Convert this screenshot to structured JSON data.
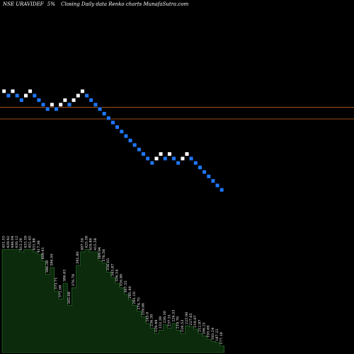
{
  "header": {
    "symbol": "NSE URAVIDEF",
    "change": "5%",
    "description": "Closing Daily data Renko charts MunafaSutra.com"
  },
  "colors": {
    "background": "#000000",
    "up_brick": "#ffffff",
    "down_brick": "#1e78ff",
    "level_line": "#c8641e",
    "volume_fill": "#0c2a0c",
    "volume_edge": "#2e7d32"
  },
  "chart_data": {
    "type": "renko",
    "brick_size_pct": 5,
    "price_axis": {
      "min": 155,
      "max": 420
    },
    "levels": [
      385,
      367
    ],
    "bricks": [
      {
        "dir": "up",
        "price": 410,
        "label": "451.55"
      },
      {
        "dir": "down",
        "price": 403,
        "label": "429.42"
      },
      {
        "dir": "up",
        "price": 410,
        "label": "448.04"
      },
      {
        "dir": "down",
        "price": 403,
        "label": "430.12"
      },
      {
        "dir": "down",
        "price": 396,
        "label": "413.29"
      },
      {
        "dir": "up",
        "price": 403,
        "label": "433.39"
      },
      {
        "dir": "up",
        "price": 410,
        "label": "452.45"
      },
      {
        "dir": "down",
        "price": 403,
        "label": "431.88"
      },
      {
        "dir": "down",
        "price": 396,
        "label": "417.36"
      },
      {
        "dir": "down",
        "price": 389,
        "label": "409.41"
      },
      {
        "dir": "down",
        "price": 382,
        "label": "386.28"
      },
      {
        "dir": "up",
        "price": 389,
        "label": "396.50"
      },
      {
        "dir": "down",
        "price": 382,
        "label": "373.71"
      },
      {
        "dir": "up",
        "price": 389,
        "label": "372.08"
      },
      {
        "dir": "up",
        "price": 396,
        "label": "386.63"
      },
      {
        "dir": "down",
        "price": 389,
        "label": "365.08"
      },
      {
        "dir": "up",
        "price": 396,
        "label": "376.78"
      },
      {
        "dir": "up",
        "price": 403,
        "label": "392.80"
      },
      {
        "dir": "up",
        "price": 410,
        "label": "407.34"
      },
      {
        "dir": "down",
        "price": 403,
        "label": "425.38"
      },
      {
        "dir": "down",
        "price": 396,
        "label": "419.89"
      },
      {
        "dir": "down",
        "price": 389,
        "label": "415.58"
      },
      {
        "dir": "down",
        "price": 382,
        "label": "389.94"
      },
      {
        "dir": "down",
        "price": 375,
        "label": "376.58"
      },
      {
        "dir": "down",
        "price": 368,
        "label": "356.65"
      },
      {
        "dir": "down",
        "price": 361,
        "label": "343.87"
      },
      {
        "dir": "down",
        "price": 354,
        "label": "336.54"
      },
      {
        "dir": "down",
        "price": 347,
        "label": "316.90"
      },
      {
        "dir": "down",
        "price": 340,
        "label": "307.55"
      },
      {
        "dir": "down",
        "price": 333,
        "label": "295.40"
      },
      {
        "dir": "down",
        "price": 326,
        "label": "281.10"
      },
      {
        "dir": "down",
        "price": 319,
        "label": "274.75"
      },
      {
        "dir": "down",
        "price": 312,
        "label": "259.66"
      },
      {
        "dir": "down",
        "price": 305,
        "label": "245.0"
      },
      {
        "dir": "down",
        "price": 298,
        "label": "236.30"
      },
      {
        "dir": "up",
        "price": 305,
        "label": "229.49"
      },
      {
        "dir": "up",
        "price": 312,
        "label": "232.39"
      },
      {
        "dir": "down",
        "price": 305,
        "label": "236.30"
      },
      {
        "dir": "up",
        "price": 312,
        "label": "237.51"
      },
      {
        "dir": "down",
        "price": 305,
        "label": "226.53"
      },
      {
        "dir": "down",
        "price": 298,
        "label": "219.70"
      },
      {
        "dir": "up",
        "price": 305,
        "label": "226.53"
      },
      {
        "dir": "up",
        "price": 312,
        "label": "225.90"
      },
      {
        "dir": "down",
        "price": 305,
        "label": "227.65"
      },
      {
        "dir": "down",
        "price": 298,
        "label": "219.07"
      },
      {
        "dir": "down",
        "price": 291,
        "label": "212.87"
      },
      {
        "dir": "down",
        "price": 284,
        "label": "206.21"
      },
      {
        "dir": "down",
        "price": 277,
        "label": "195.69"
      },
      {
        "dir": "down",
        "price": 270,
        "label": "183.24"
      },
      {
        "dir": "down",
        "price": 263,
        "label": "187.22"
      },
      {
        "dir": "down",
        "price": 256,
        "label": "177.18"
      }
    ],
    "volume_profile": [
      0.92,
      0.92,
      0.92,
      0.92,
      0.9,
      0.92,
      0.92,
      0.9,
      0.88,
      0.82,
      0.7,
      0.76,
      0.55,
      0.48,
      0.62,
      0.42,
      0.58,
      0.78,
      0.9,
      0.92,
      0.9,
      0.9,
      0.82,
      0.8,
      0.72,
      0.67,
      0.62,
      0.58,
      0.52,
      0.47,
      0.42,
      0.37,
      0.32,
      0.26,
      0.22,
      0.17,
      0.2,
      0.25,
      0.22,
      0.26,
      0.2,
      0.17,
      0.24,
      0.23,
      0.21,
      0.17,
      0.15,
      0.12,
      0.1,
      0.09,
      0.06
    ]
  }
}
